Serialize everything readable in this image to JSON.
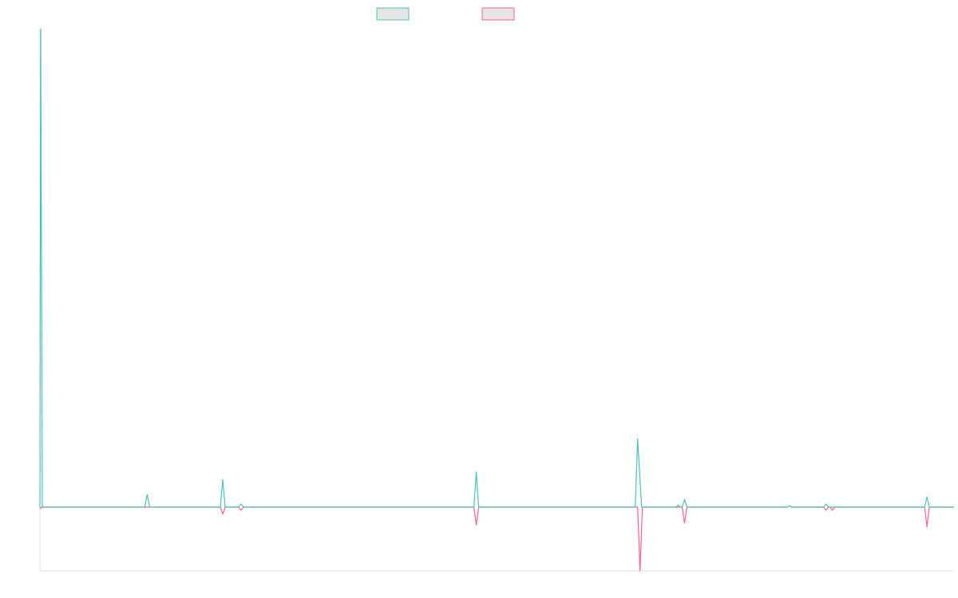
{
  "chart_data": {
    "type": "line",
    "title": "",
    "xlabel": "",
    "ylabel": "",
    "legend_position": "top-center",
    "grid": false,
    "xlim": [
      0,
      1150
    ],
    "ylim": [
      -100,
      750
    ],
    "series": [
      {
        "color": "#4bc0c0",
        "legend_fill": "#e5e5e5",
        "points": [
          [
            0,
            0
          ],
          [
            1,
            750
          ],
          [
            3,
            0
          ],
          [
            132,
            0
          ],
          [
            135,
            20
          ],
          [
            138,
            0
          ],
          [
            227,
            0
          ],
          [
            230,
            43
          ],
          [
            233,
            0
          ],
          [
            250,
            0
          ],
          [
            253,
            5
          ],
          [
            256,
            0
          ],
          [
            546,
            0
          ],
          [
            549,
            55
          ],
          [
            552,
            0
          ],
          [
            749,
            0
          ],
          [
            752,
            107
          ],
          [
            757,
            0
          ],
          [
            800,
            0
          ],
          [
            803,
            3
          ],
          [
            806,
            0
          ],
          [
            808,
            0
          ],
          [
            811,
            12
          ],
          [
            814,
            0
          ],
          [
            940,
            0
          ],
          [
            943,
            2
          ],
          [
            946,
            0
          ],
          [
            986,
            0
          ],
          [
            989,
            5
          ],
          [
            992,
            0
          ],
          [
            1113,
            0
          ],
          [
            1116,
            16
          ],
          [
            1119,
            0
          ],
          [
            1150,
            0
          ]
        ]
      },
      {
        "color": "#ff6384",
        "legend_fill": "#e5e5e5",
        "points": [
          [
            0,
            0
          ],
          [
            1,
            -2
          ],
          [
            3,
            0
          ],
          [
            227,
            0
          ],
          [
            230,
            -11
          ],
          [
            233,
            0
          ],
          [
            250,
            0
          ],
          [
            253,
            -5
          ],
          [
            256,
            0
          ],
          [
            546,
            0
          ],
          [
            549,
            -28
          ],
          [
            552,
            0
          ],
          [
            752,
            0
          ],
          [
            755,
            -100
          ],
          [
            758,
            0
          ],
          [
            808,
            0
          ],
          [
            811,
            -25
          ],
          [
            814,
            0
          ],
          [
            940,
            0
          ],
          [
            943,
            2
          ],
          [
            946,
            0
          ],
          [
            986,
            0
          ],
          [
            989,
            -5
          ],
          [
            992,
            0
          ],
          [
            994,
            0
          ],
          [
            997,
            -5
          ],
          [
            1000,
            0
          ],
          [
            1113,
            0
          ],
          [
            1116,
            -31
          ],
          [
            1119,
            0
          ],
          [
            1150,
            0
          ]
        ]
      }
    ]
  }
}
